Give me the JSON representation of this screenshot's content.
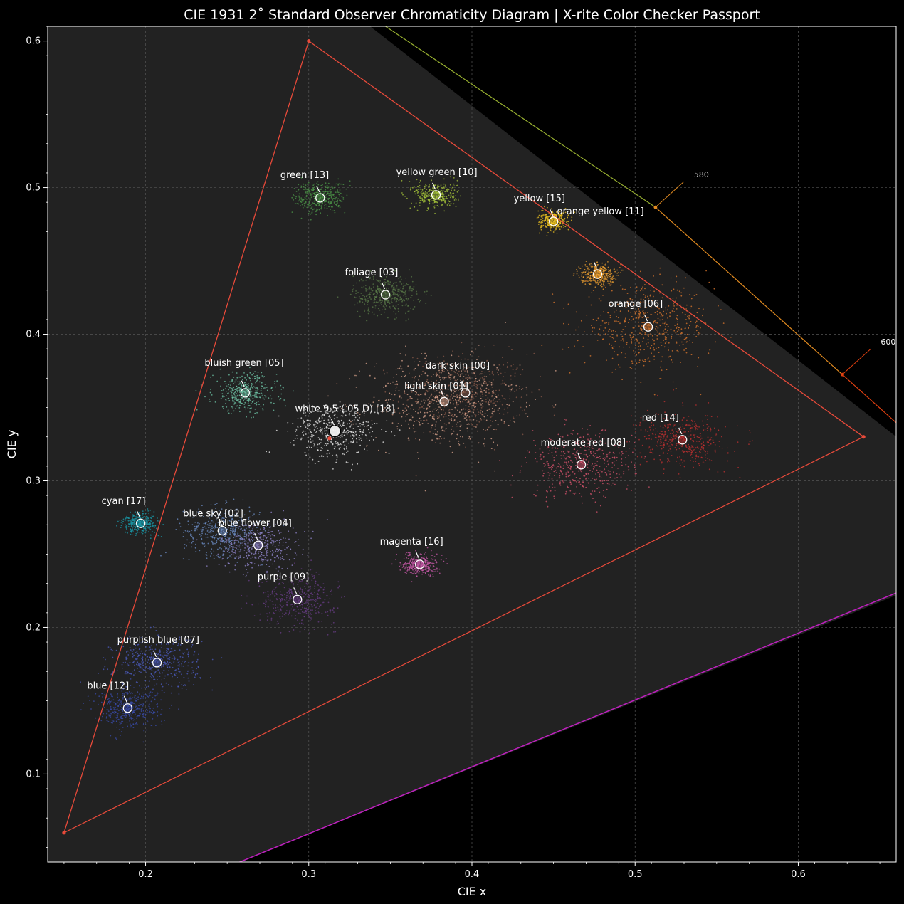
{
  "chart_data": {
    "type": "scatter",
    "title": "CIE 1931 2$^\\circ$ Standard Observer Chromaticity Diagram |  X-rite Color Checker Passport",
    "title_display": "CIE 1931 2˚  Standard Observer Chromaticity Diagram |  X-rite Color Checker Passport",
    "xlabel": "CIE x",
    "ylabel": "CIE y",
    "xlim": [
      0.14,
      0.66
    ],
    "ylim": [
      0.04,
      0.61
    ],
    "xticks": [
      0.2,
      0.3,
      0.4,
      0.5,
      0.6
    ],
    "yticks": [
      0.1,
      0.2,
      0.3,
      0.4,
      0.5,
      0.6
    ],
    "grid": true,
    "gamut_triangle": [
      [
        0.3,
        0.6
      ],
      [
        0.64,
        0.33
      ],
      [
        0.15,
        0.06
      ]
    ],
    "whitepoint": [
      0.3127,
      0.329
    ],
    "spectral_locus_labels": [
      {
        "label": "580",
        "x": 0.5125,
        "y": 0.4866
      },
      {
        "label": "600",
        "x": 0.627,
        "y": 0.3725
      }
    ],
    "swatches": [
      {
        "label": "dark skin [00]",
        "x": 0.396,
        "y": 0.36,
        "color": "#8a5a4a",
        "spread": 0.03
      },
      {
        "label": "light skin [01]",
        "x": 0.383,
        "y": 0.354,
        "color": "#e0a890",
        "spread": 0.035
      },
      {
        "label": "blue sky [02]",
        "x": 0.247,
        "y": 0.266,
        "color": "#6e8fc8",
        "spread": 0.018
      },
      {
        "label": "foliage [03]",
        "x": 0.347,
        "y": 0.427,
        "color": "#5a7a48",
        "spread": 0.015
      },
      {
        "label": "blue flower [04]",
        "x": 0.269,
        "y": 0.256,
        "color": "#8f84c9",
        "spread": 0.018
      },
      {
        "label": "bluish green [05]",
        "x": 0.261,
        "y": 0.36,
        "color": "#70c8aa",
        "spread": 0.015
      },
      {
        "label": "orange [06]",
        "x": 0.508,
        "y": 0.405,
        "color": "#e0792e",
        "spread": 0.03
      },
      {
        "label": "purplish blue [07]",
        "x": 0.207,
        "y": 0.176,
        "color": "#4c5cc0",
        "spread": 0.02
      },
      {
        "label": "moderate red [08]",
        "x": 0.467,
        "y": 0.311,
        "color": "#d8546e",
        "spread": 0.025
      },
      {
        "label": "purple [09]",
        "x": 0.293,
        "y": 0.219,
        "color": "#6a3e88",
        "spread": 0.018
      },
      {
        "label": "yellow green [10]",
        "x": 0.378,
        "y": 0.495,
        "color": "#a6c43a",
        "spread": 0.01
      },
      {
        "label": "orange yellow [11]",
        "x": 0.477,
        "y": 0.441,
        "color": "#eea030",
        "spread": 0.008
      },
      {
        "label": "blue [12]",
        "x": 0.189,
        "y": 0.145,
        "color": "#3a4cac",
        "spread": 0.015
      },
      {
        "label": "green [13]",
        "x": 0.307,
        "y": 0.493,
        "color": "#4e9a4a",
        "spread": 0.012
      },
      {
        "label": "red [14]",
        "x": 0.529,
        "y": 0.328,
        "color": "#c23030",
        "spread": 0.02
      },
      {
        "label": "yellow [15]",
        "x": 0.45,
        "y": 0.477,
        "color": "#f0c420",
        "spread": 0.007
      },
      {
        "label": "magenta [16]",
        "x": 0.368,
        "y": 0.243,
        "color": "#c85aaa",
        "spread": 0.008
      },
      {
        "label": "cyan [17]",
        "x": 0.197,
        "y": 0.271,
        "color": "#1a9aaa",
        "spread": 0.008
      },
      {
        "label": "white 9.5 (.05 D) [18]",
        "x": 0.316,
        "y": 0.334,
        "color": "#f2f2f2",
        "spread": 0.02
      }
    ]
  }
}
